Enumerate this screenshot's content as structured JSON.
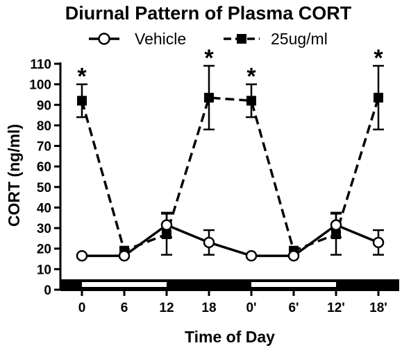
{
  "chart_data": {
    "type": "line",
    "title": "Diurnal Pattern of Plasma CORT",
    "xlabel": "Time of Day",
    "ylabel": "CORT (ng/ml)",
    "ylim": [
      0,
      110
    ],
    "yticks": [
      "0",
      "10",
      "20",
      "30",
      "40",
      "50",
      "60",
      "70",
      "80",
      "90",
      "100",
      "110"
    ],
    "categories": [
      "0",
      "6",
      "12",
      "18",
      "0'",
      "6'",
      "12'",
      "18'"
    ],
    "legend_position": "top",
    "grid": false,
    "series": [
      {
        "name": "Vehicle",
        "marker": "open-circle",
        "line_style": "solid",
        "color": "#000000",
        "values": [
          16.5,
          16.5,
          31.5,
          23,
          16.5,
          16.5,
          31.5,
          23
        ],
        "errors": [
          0,
          0,
          6,
          6,
          0,
          0,
          6,
          6
        ]
      },
      {
        "name": "25ug/ml",
        "marker": "filled-square",
        "line_style": "dashed",
        "color": "#000000",
        "values": [
          92,
          19,
          27,
          93.5,
          92,
          19,
          27,
          93.5
        ],
        "errors": [
          8,
          0,
          10,
          15.5,
          8,
          0,
          10,
          15.5
        ]
      }
    ],
    "significance_marker": "*",
    "significant_points": [
      0,
      3,
      4,
      7
    ],
    "light_dark_bar": [
      {
        "phase": "dark",
        "from": -0.75,
        "to": 0.0
      },
      {
        "phase": "light",
        "from": 0.0,
        "to": 2.0
      },
      {
        "phase": "dark",
        "from": 2.0,
        "to": 4.0
      },
      {
        "phase": "light",
        "from": 4.0,
        "to": 6.0
      },
      {
        "phase": "dark",
        "from": 6.0,
        "to": 7.75
      }
    ]
  }
}
